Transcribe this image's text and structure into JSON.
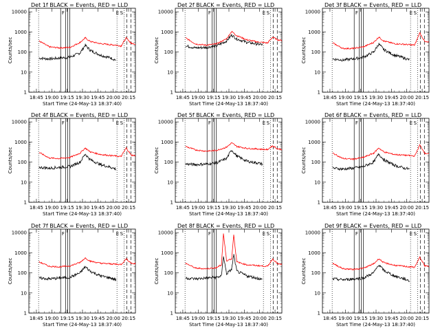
{
  "common": {
    "xlabel": "Start Time (24-May-13 18:37:40)",
    "ylabel": "Counts/sec",
    "xticks": [
      "18:45",
      "19:00",
      "19:15",
      "19:30",
      "19:45",
      "20:00",
      "20:15"
    ],
    "xtick_minutes": [
      7.33,
      22.33,
      37.33,
      52.33,
      67.33,
      82.33,
      97.33
    ],
    "x_range_minutes": [
      0,
      104
    ],
    "yticks": [
      "1",
      "10",
      "100",
      "1000",
      "10000"
    ],
    "ylim": [
      1,
      15000
    ],
    "log_y": true,
    "series_colors": {
      "events": "#000000",
      "lld": "#ff0000"
    },
    "marker_labels": {
      "F": "F",
      "S": "S",
      "E": "E"
    },
    "markers": {
      "dotted": [
        9.5,
        86.0,
        93.0
      ],
      "solid": [
        31.0,
        36.0,
        38.0,
        40.0
      ],
      "dashed": [
        95.5,
        99.5
      ]
    },
    "series_names": {
      "events": "Events",
      "lld": "LLD"
    }
  },
  "panels": [
    {
      "title": "Det 1f  BLACK = Events, RED = LLD"
    },
    {
      "title": "Det 2f  BLACK = Events, RED = LLD"
    },
    {
      "title": "Det 3f  BLACK = Events, RED = LLD"
    },
    {
      "title": "Det 4f  BLACK = Events, RED = LLD"
    },
    {
      "title": "Det 5f  BLACK = Events, RED = LLD"
    },
    {
      "title": "Det 6f  BLACK = Events, RED = LLD"
    },
    {
      "title": "Det 7f  BLACK = Events, RED = LLD"
    },
    {
      "title": "Det 8f  BLACK = Events, RED = LLD"
    },
    {
      "title": "Det 9f  BLACK = Events, RED = LLD"
    }
  ],
  "chart_data": [
    {
      "type": "line",
      "title": "Det 1f  BLACK = Events, RED = LLD",
      "xlabel": "Start Time (24-May-13 18:37:40)",
      "ylabel": "Counts/sec",
      "ylim": [
        1,
        15000
      ],
      "yscale": "log",
      "x": [
        0,
        10,
        20,
        30,
        40,
        50,
        55,
        60,
        70,
        80,
        85,
        90,
        95,
        100,
        104
      ],
      "series": [
        {
          "name": "Events",
          "values": [
            null,
            50,
            45,
            50,
            55,
            90,
            220,
            120,
            70,
            50,
            40,
            null,
            null,
            null,
            null
          ]
        },
        {
          "name": "LLD",
          "values": [
            null,
            350,
            180,
            160,
            170,
            300,
            500,
            330,
            260,
            230,
            220,
            200,
            500,
            270,
            250
          ]
        }
      ]
    },
    {
      "type": "line",
      "title": "Det 2f  BLACK = Events, RED = LLD",
      "xlabel": "Start Time (24-May-13 18:37:40)",
      "ylabel": "Counts/sec",
      "ylim": [
        1,
        15000
      ],
      "yscale": "log",
      "x": [
        0,
        10,
        20,
        30,
        40,
        50,
        55,
        60,
        70,
        80,
        85,
        90,
        95,
        100,
        104
      ],
      "series": [
        {
          "name": "Events",
          "values": [
            null,
            200,
            160,
            170,
            200,
            350,
            700,
            450,
            300,
            250,
            230,
            null,
            null,
            null,
            null
          ]
        },
        {
          "name": "LLD",
          "values": [
            null,
            500,
            250,
            220,
            250,
            450,
            1050,
            650,
            400,
            320,
            300,
            280,
            550,
            400,
            380
          ]
        }
      ]
    },
    {
      "type": "line",
      "title": "Det 3f  BLACK = Events, RED = LLD",
      "xlabel": "Start Time (24-May-13 18:37:40)",
      "ylabel": "Counts/sec",
      "ylim": [
        1,
        15000
      ],
      "yscale": "log",
      "x": [
        0,
        10,
        20,
        30,
        40,
        50,
        55,
        60,
        70,
        80,
        85,
        90,
        95,
        100,
        104
      ],
      "series": [
        {
          "name": "Events",
          "values": [
            null,
            45,
            40,
            45,
            55,
            100,
            250,
            130,
            70,
            50,
            40,
            null,
            null,
            null,
            null
          ]
        },
        {
          "name": "LLD",
          "values": [
            null,
            280,
            150,
            150,
            180,
            300,
            550,
            350,
            260,
            240,
            230,
            220,
            900,
            320,
            300
          ]
        }
      ]
    },
    {
      "type": "line",
      "title": "Det 4f  BLACK = Events, RED = LLD",
      "xlabel": "Start Time (24-May-13 18:37:40)",
      "ylabel": "Counts/sec",
      "ylim": [
        1,
        15000
      ],
      "yscale": "log",
      "x": [
        0,
        10,
        20,
        30,
        40,
        50,
        55,
        60,
        70,
        80,
        85,
        90,
        95,
        100,
        104
      ],
      "series": [
        {
          "name": "Events",
          "values": [
            null,
            55,
            50,
            55,
            60,
            100,
            250,
            130,
            75,
            55,
            45,
            null,
            null,
            null,
            null
          ]
        },
        {
          "name": "LLD",
          "values": [
            null,
            300,
            160,
            150,
            170,
            280,
            500,
            320,
            240,
            210,
            200,
            190,
            500,
            220,
            210
          ]
        }
      ]
    },
    {
      "type": "line",
      "title": "Det 5f  BLACK = Events, RED = LLD",
      "xlabel": "Start Time (24-May-13 18:37:40)",
      "ylabel": "Counts/sec",
      "ylim": [
        1,
        15000
      ],
      "yscale": "log",
      "x": [
        0,
        10,
        20,
        30,
        40,
        50,
        55,
        60,
        70,
        80,
        85,
        90,
        95,
        100,
        104
      ],
      "series": [
        {
          "name": "Events",
          "values": [
            null,
            80,
            75,
            80,
            90,
            150,
            400,
            200,
            110,
            90,
            80,
            null,
            null,
            null,
            null
          ]
        },
        {
          "name": "LLD",
          "values": [
            null,
            600,
            400,
            350,
            380,
            550,
            900,
            600,
            480,
            450,
            430,
            420,
            650,
            450,
            430
          ]
        }
      ]
    },
    {
      "type": "line",
      "title": "Det 6f  BLACK = Events, RED = LLD",
      "xlabel": "Start Time (24-May-13 18:37:40)",
      "ylabel": "Counts/sec",
      "ylim": [
        1,
        15000
      ],
      "yscale": "log",
      "x": [
        0,
        10,
        20,
        30,
        40,
        50,
        55,
        60,
        70,
        80,
        85,
        90,
        95,
        100,
        104
      ],
      "series": [
        {
          "name": "Events",
          "values": [
            null,
            50,
            45,
            50,
            60,
            100,
            250,
            130,
            70,
            50,
            45,
            null,
            null,
            null,
            null
          ]
        },
        {
          "name": "LLD",
          "values": [
            null,
            280,
            150,
            140,
            170,
            280,
            500,
            320,
            240,
            220,
            210,
            200,
            700,
            280,
            260
          ]
        }
      ]
    },
    {
      "type": "line",
      "title": "Det 7f  BLACK = Events, RED = LLD",
      "xlabel": "Start Time (24-May-13 18:37:40)",
      "ylabel": "Counts/sec",
      "ylim": [
        1,
        15000
      ],
      "yscale": "log",
      "x": [
        0,
        10,
        20,
        30,
        40,
        50,
        55,
        60,
        70,
        80,
        85,
        90,
        95,
        100,
        104
      ],
      "series": [
        {
          "name": "Events",
          "values": [
            null,
            55,
            50,
            55,
            60,
            100,
            200,
            120,
            70,
            55,
            45,
            null,
            null,
            null,
            null
          ]
        },
        {
          "name": "LLD",
          "values": [
            null,
            350,
            210,
            200,
            220,
            330,
            550,
            380,
            300,
            280,
            270,
            260,
            500,
            300,
            280
          ]
        }
      ]
    },
    {
      "type": "line",
      "title": "Det 8f  BLACK = Events, RED = LLD",
      "xlabel": "Start Time (24-May-13 18:37:40)",
      "ylabel": "Counts/sec",
      "ylim": [
        1,
        15000
      ],
      "yscale": "log",
      "x": [
        0,
        10,
        20,
        30,
        40,
        45,
        47,
        50,
        55,
        57,
        60,
        70,
        80,
        85,
        90,
        95,
        100,
        104
      ],
      "series": [
        {
          "name": "Events",
          "values": [
            null,
            55,
            50,
            55,
            60,
            70,
            700,
            90,
            150,
            800,
            120,
            70,
            55,
            45,
            null,
            null,
            null,
            null
          ]
        },
        {
          "name": "LLD",
          "values": [
            null,
            300,
            170,
            160,
            180,
            250,
            9000,
            400,
            500,
            8000,
            350,
            250,
            230,
            220,
            210,
            500,
            280,
            260
          ]
        }
      ]
    },
    {
      "type": "line",
      "title": "Det 9f  BLACK = Events, RED = LLD",
      "xlabel": "Start Time (24-May-13 18:37:40)",
      "ylabel": "Counts/sec",
      "ylim": [
        1,
        15000
      ],
      "yscale": "log",
      "x": [
        0,
        10,
        20,
        30,
        40,
        50,
        55,
        60,
        70,
        80,
        85,
        90,
        95,
        100,
        104
      ],
      "series": [
        {
          "name": "Events",
          "values": [
            null,
            50,
            45,
            50,
            55,
            100,
            250,
            130,
            70,
            50,
            40,
            null,
            null,
            null,
            null
          ]
        },
        {
          "name": "LLD",
          "values": [
            null,
            300,
            160,
            150,
            170,
            280,
            500,
            320,
            240,
            210,
            200,
            190,
            600,
            220,
            210
          ]
        }
      ]
    }
  ]
}
